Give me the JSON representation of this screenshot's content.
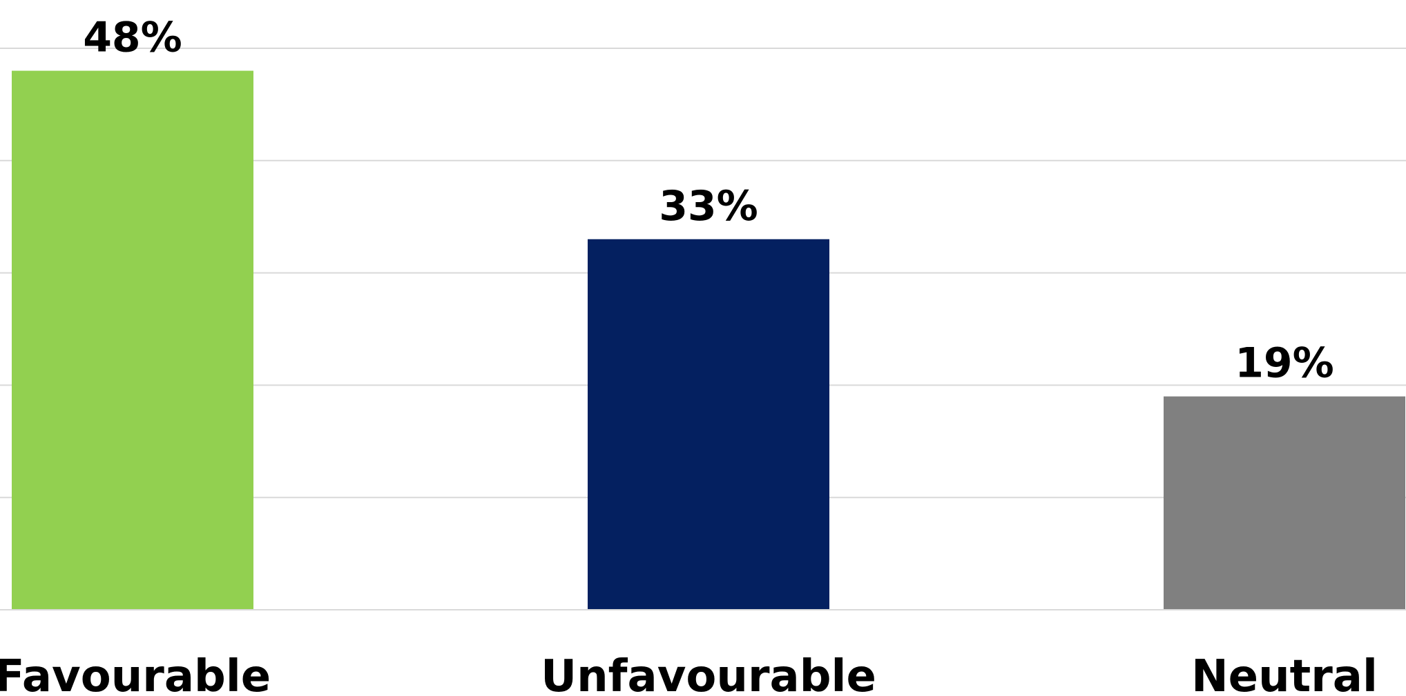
{
  "chart_data": {
    "type": "bar",
    "categories": [
      "Favourable",
      "Unfavourable",
      "Neutral"
    ],
    "values": [
      48,
      33,
      19
    ],
    "value_labels": [
      "48%",
      "33%",
      "19%"
    ],
    "title": "",
    "xlabel": "",
    "ylabel": "",
    "ylim": [
      0,
      50
    ],
    "ytick_step": 10,
    "grid": true,
    "colors": [
      "#92d050",
      "#042060",
      "#808080"
    ],
    "grid_color": "#d9d9d9",
    "axis_color": "#d9d9d9"
  }
}
